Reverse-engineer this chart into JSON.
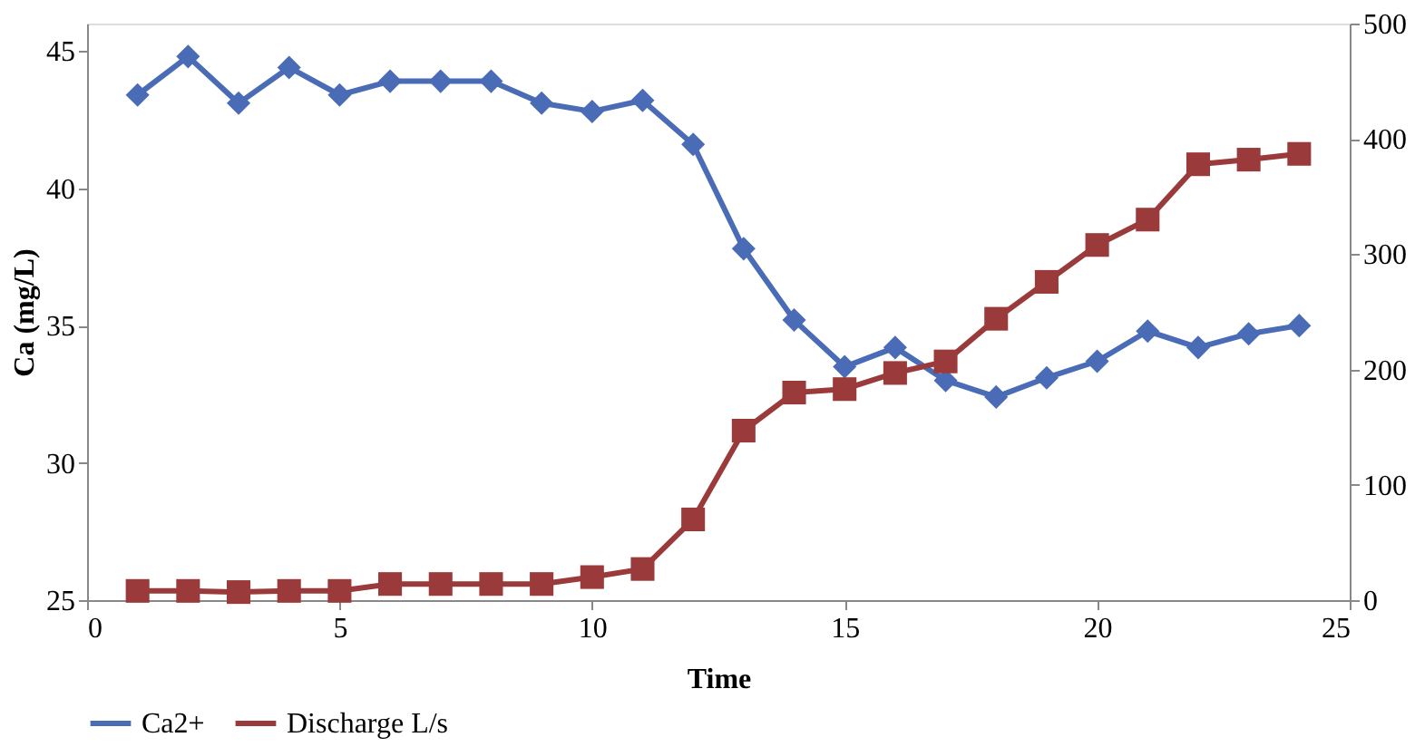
{
  "chart_data": {
    "type": "line",
    "xlabel": "Time",
    "ylabel": "Ca (mg/L)",
    "x": [
      1,
      2,
      3,
      4,
      5,
      6,
      7,
      8,
      9,
      10,
      11,
      12,
      13,
      14,
      15,
      16,
      17,
      18,
      19,
      20,
      21,
      22,
      23,
      24
    ],
    "series": [
      {
        "name": "Ca2+",
        "color": "#4a6bb5",
        "marker": "diamond",
        "values": [
          43.4,
          44.8,
          43.1,
          44.4,
          43.4,
          43.9,
          43.9,
          43.9,
          43.1,
          42.8,
          43.2,
          41.6,
          37.8,
          35.2,
          33.5,
          34.2,
          33.0,
          32.4,
          33.1,
          33.7,
          34.8,
          34.2,
          34.7,
          35.0
        ]
      },
      {
        "name": "Discharge L/s",
        "color": "#9b3a3a",
        "marker": "square",
        "axis": "y2",
        "values": [
          8,
          8,
          7,
          8,
          8,
          14,
          14,
          14,
          14,
          20,
          27,
          70,
          147,
          180,
          183,
          197,
          207,
          244,
          276,
          308,
          330,
          378,
          382,
          387
        ]
      }
    ],
    "xlim": [
      0,
      25
    ],
    "xticks": [
      0,
      5,
      10,
      15,
      20,
      25
    ],
    "ylim": [
      25,
      46
    ],
    "yticks": [
      25,
      30,
      35,
      40,
      45
    ],
    "y2lim": [
      0,
      500
    ],
    "y2ticks": [
      0,
      100,
      200,
      300,
      400,
      500
    ],
    "grid": false,
    "legend": "bottom",
    "line_style": "solid"
  }
}
